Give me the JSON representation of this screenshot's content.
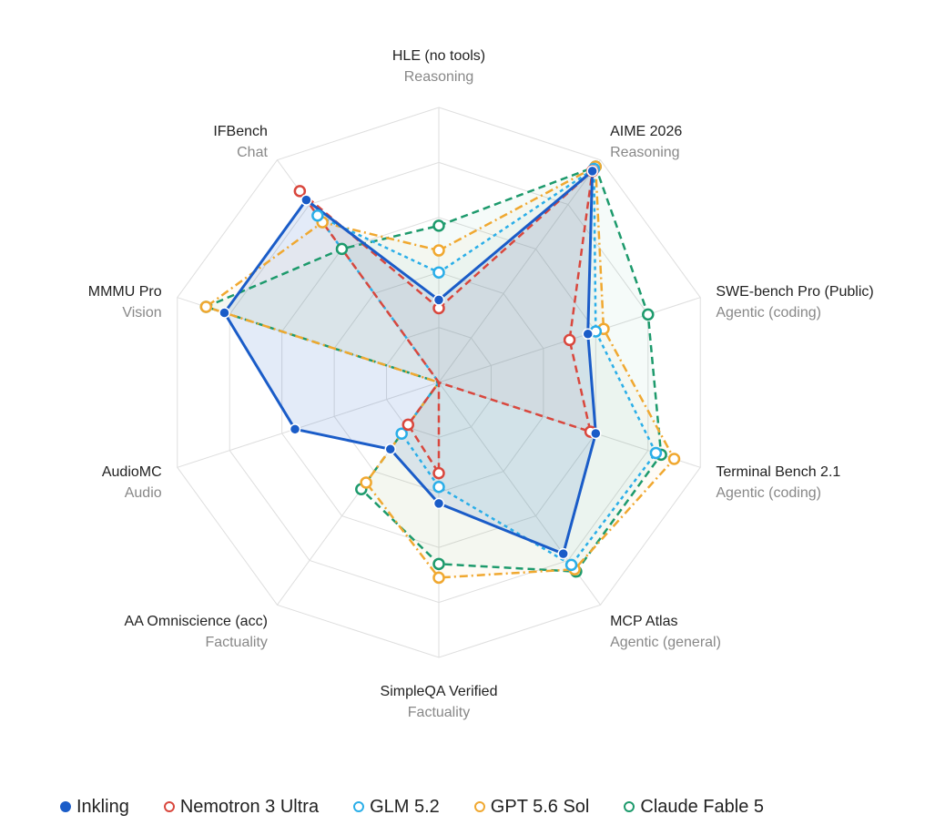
{
  "chart_data": {
    "type": "radar",
    "r_range": [
      0,
      100
    ],
    "grid": true,
    "legend_position": "bottom",
    "axes": [
      {
        "name": "HLE (no tools)",
        "category": "Reasoning"
      },
      {
        "name": "AIME 2026",
        "category": "Reasoning"
      },
      {
        "name": "SWE-bench Pro (Public)",
        "category": "Agentic (coding)"
      },
      {
        "name": "Terminal Bench 2.1",
        "category": "Agentic (coding)"
      },
      {
        "name": "MCP Atlas",
        "category": "Agentic (general)"
      },
      {
        "name": "SimpleQA Verified",
        "category": "Factuality"
      },
      {
        "name": "AA Omniscience (acc)",
        "category": "Factuality"
      },
      {
        "name": "AudioMC",
        "category": "Audio"
      },
      {
        "name": "MMMU Pro",
        "category": "Vision"
      },
      {
        "name": "IFBench",
        "category": "Chat"
      }
    ],
    "series": [
      {
        "name": "Inkling",
        "color": "#1a5cc8",
        "style": "solid",
        "marker": "filled",
        "values": [
          30,
          95,
          57,
          60,
          77,
          44,
          30,
          55,
          82,
          82
        ]
      },
      {
        "name": "Nemotron 3 Ultra",
        "color": "#d9473d",
        "style": "dashed",
        "marker": "hollow",
        "values": [
          27,
          95,
          50,
          58,
          0,
          33,
          19,
          0,
          0,
          86
        ]
      },
      {
        "name": "GLM 5.2",
        "color": "#2aaee8",
        "style": "dotted",
        "marker": "hollow",
        "values": [
          40,
          96,
          60,
          83,
          82,
          38,
          23,
          0,
          0,
          75
        ]
      },
      {
        "name": "GPT 5.6 Sol",
        "color": "#f0a830",
        "style": "dashdot",
        "marker": "hollow",
        "values": [
          48,
          97,
          63,
          90,
          84,
          71,
          45,
          0,
          89,
          72
        ]
      },
      {
        "name": "Claude Fable 5",
        "color": "#1d9a6c",
        "style": "dashed",
        "marker": "hollow",
        "values": [
          57,
          97,
          80,
          85,
          85,
          66,
          48,
          0,
          89,
          60
        ]
      }
    ]
  }
}
